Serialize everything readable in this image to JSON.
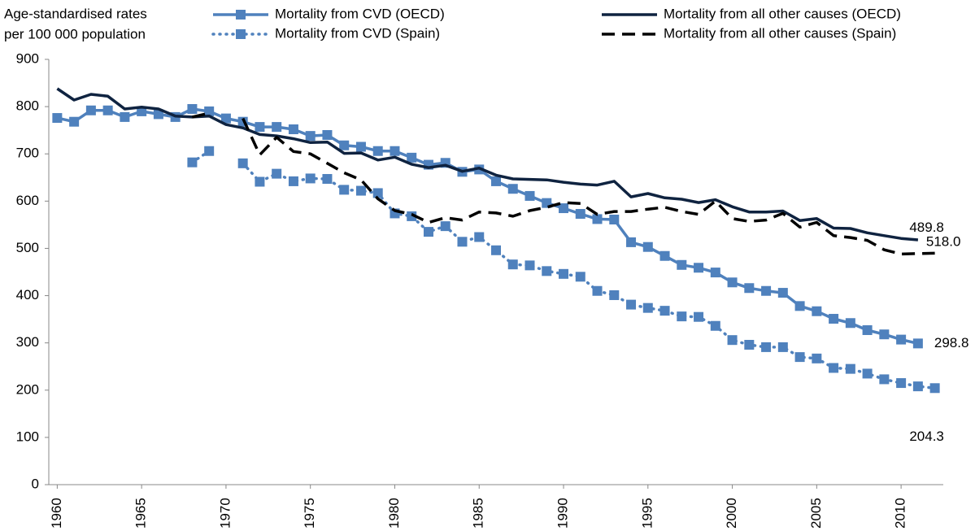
{
  "chart_data": {
    "type": "line",
    "y_label": [
      "Age-standardised rates",
      "per 100 000 population"
    ],
    "x": [
      1960,
      1961,
      1962,
      1963,
      1964,
      1965,
      1966,
      1967,
      1968,
      1969,
      1970,
      1971,
      1972,
      1973,
      1974,
      1975,
      1976,
      1977,
      1978,
      1979,
      1980,
      1981,
      1982,
      1983,
      1984,
      1985,
      1986,
      1987,
      1988,
      1989,
      1990,
      1991,
      1992,
      1993,
      1994,
      1995,
      1996,
      1997,
      1998,
      1999,
      2000,
      2001,
      2002,
      2003,
      2004,
      2005,
      2006,
      2007,
      2008,
      2009,
      2010,
      2011,
      2012
    ],
    "xlim": [
      1959.5,
      2012.5
    ],
    "xticks": [
      1960,
      1965,
      1970,
      1975,
      1980,
      1985,
      1990,
      1995,
      2000,
      2005,
      2010
    ],
    "ylim": [
      0,
      900
    ],
    "yticks": [
      0,
      100,
      200,
      300,
      400,
      500,
      600,
      700,
      800,
      900
    ],
    "grid": false,
    "series": [
      {
        "name": "Mortality from CVD (OECD)",
        "color": "#4f81bd",
        "dash": "solid",
        "marker": "square",
        "values": [
          776,
          768,
          792,
          792,
          778,
          790,
          784,
          778,
          795,
          790,
          775,
          768,
          757,
          757,
          752,
          738,
          740,
          718,
          715,
          706,
          706,
          692,
          677,
          681,
          662,
          667,
          642,
          626,
          611,
          596,
          585,
          573,
          562,
          561,
          513,
          503,
          484,
          465,
          459,
          449,
          428,
          416,
          410,
          406,
          378,
          367,
          351,
          342,
          327,
          318,
          307,
          298.8,
          null
        ],
        "value_labels": [
          null,
          null,
          null,
          null,
          null,
          null,
          null,
          null,
          null,
          null,
          null,
          null,
          null,
          null,
          null,
          null,
          null,
          null,
          null,
          null,
          null,
          null,
          null,
          null,
          null,
          null,
          null,
          null,
          null,
          null,
          null,
          null,
          null,
          null,
          null,
          null,
          null,
          null,
          null,
          null,
          null,
          null,
          null,
          null,
          null,
          null,
          null,
          null,
          null,
          null,
          null,
          "298.8",
          null
        ]
      },
      {
        "name": "Mortality from CVD (Spain)",
        "color": "#4f81bd",
        "dash": "dotted",
        "marker": "square",
        "values": [
          null,
          null,
          null,
          null,
          null,
          null,
          null,
          null,
          682,
          706,
          null,
          680,
          641,
          658,
          642,
          648,
          647,
          624,
          622,
          617,
          574,
          568,
          535,
          547,
          514,
          524,
          496,
          466,
          464,
          452,
          446,
          440,
          410,
          401,
          381,
          374,
          368,
          356,
          355,
          336,
          306,
          296,
          291,
          291,
          270,
          267,
          247,
          245,
          235,
          223,
          215,
          208,
          204.3
        ],
        "value_labels": [
          null,
          null,
          null,
          null,
          null,
          null,
          null,
          null,
          null,
          null,
          null,
          null,
          null,
          null,
          null,
          null,
          null,
          null,
          null,
          null,
          null,
          null,
          null,
          null,
          null,
          null,
          null,
          null,
          null,
          null,
          null,
          null,
          null,
          null,
          null,
          null,
          null,
          null,
          null,
          null,
          null,
          null,
          null,
          null,
          null,
          null,
          null,
          null,
          null,
          null,
          null,
          null,
          "204.3"
        ]
      },
      {
        "name": "Mortality from all other causes (OECD)",
        "color": "#0f2340",
        "dash": "solid",
        "marker": "none",
        "values": [
          838,
          814,
          826,
          822,
          795,
          799,
          795,
          780,
          778,
          780,
          762,
          755,
          741,
          738,
          732,
          724,
          725,
          701,
          702,
          687,
          693,
          678,
          671,
          676,
          663,
          670,
          655,
          647,
          646,
          645,
          640,
          636,
          634,
          642,
          609,
          616,
          607,
          604,
          597,
          603,
          588,
          577,
          577,
          579,
          559,
          563,
          543,
          542,
          533,
          527,
          521,
          518,
          null
        ],
        "value_labels": [
          null,
          null,
          null,
          null,
          null,
          null,
          null,
          null,
          null,
          null,
          null,
          null,
          null,
          null,
          null,
          null,
          null,
          null,
          null,
          null,
          null,
          null,
          null,
          null,
          null,
          null,
          null,
          null,
          null,
          null,
          null,
          null,
          null,
          null,
          null,
          null,
          null,
          null,
          null,
          null,
          null,
          null,
          null,
          null,
          null,
          null,
          null,
          null,
          null,
          null,
          null,
          "518.0",
          null
        ]
      },
      {
        "name": "Mortality from all other causes (Spain)",
        "color": "#000000",
        "dash": "dashed",
        "marker": "none",
        "values": [
          null,
          null,
          null,
          null,
          null,
          null,
          null,
          null,
          778,
          786,
          null,
          775,
          698,
          735,
          705,
          700,
          680,
          660,
          645,
          605,
          580,
          572,
          555,
          565,
          560,
          577,
          575,
          568,
          580,
          587,
          597,
          595,
          572,
          578,
          578,
          583,
          587,
          578,
          572,
          600,
          563,
          557,
          560,
          574,
          545,
          555,
          527,
          523,
          517,
          497,
          488,
          489,
          489.8
        ],
        "value_labels": [
          null,
          null,
          null,
          null,
          null,
          null,
          null,
          null,
          null,
          null,
          null,
          null,
          null,
          null,
          null,
          null,
          null,
          null,
          null,
          null,
          null,
          null,
          null,
          null,
          null,
          null,
          null,
          null,
          null,
          null,
          null,
          null,
          null,
          null,
          null,
          null,
          null,
          null,
          null,
          null,
          null,
          null,
          null,
          null,
          null,
          null,
          null,
          null,
          null,
          null,
          null,
          null,
          "489.8"
        ]
      }
    ]
  }
}
